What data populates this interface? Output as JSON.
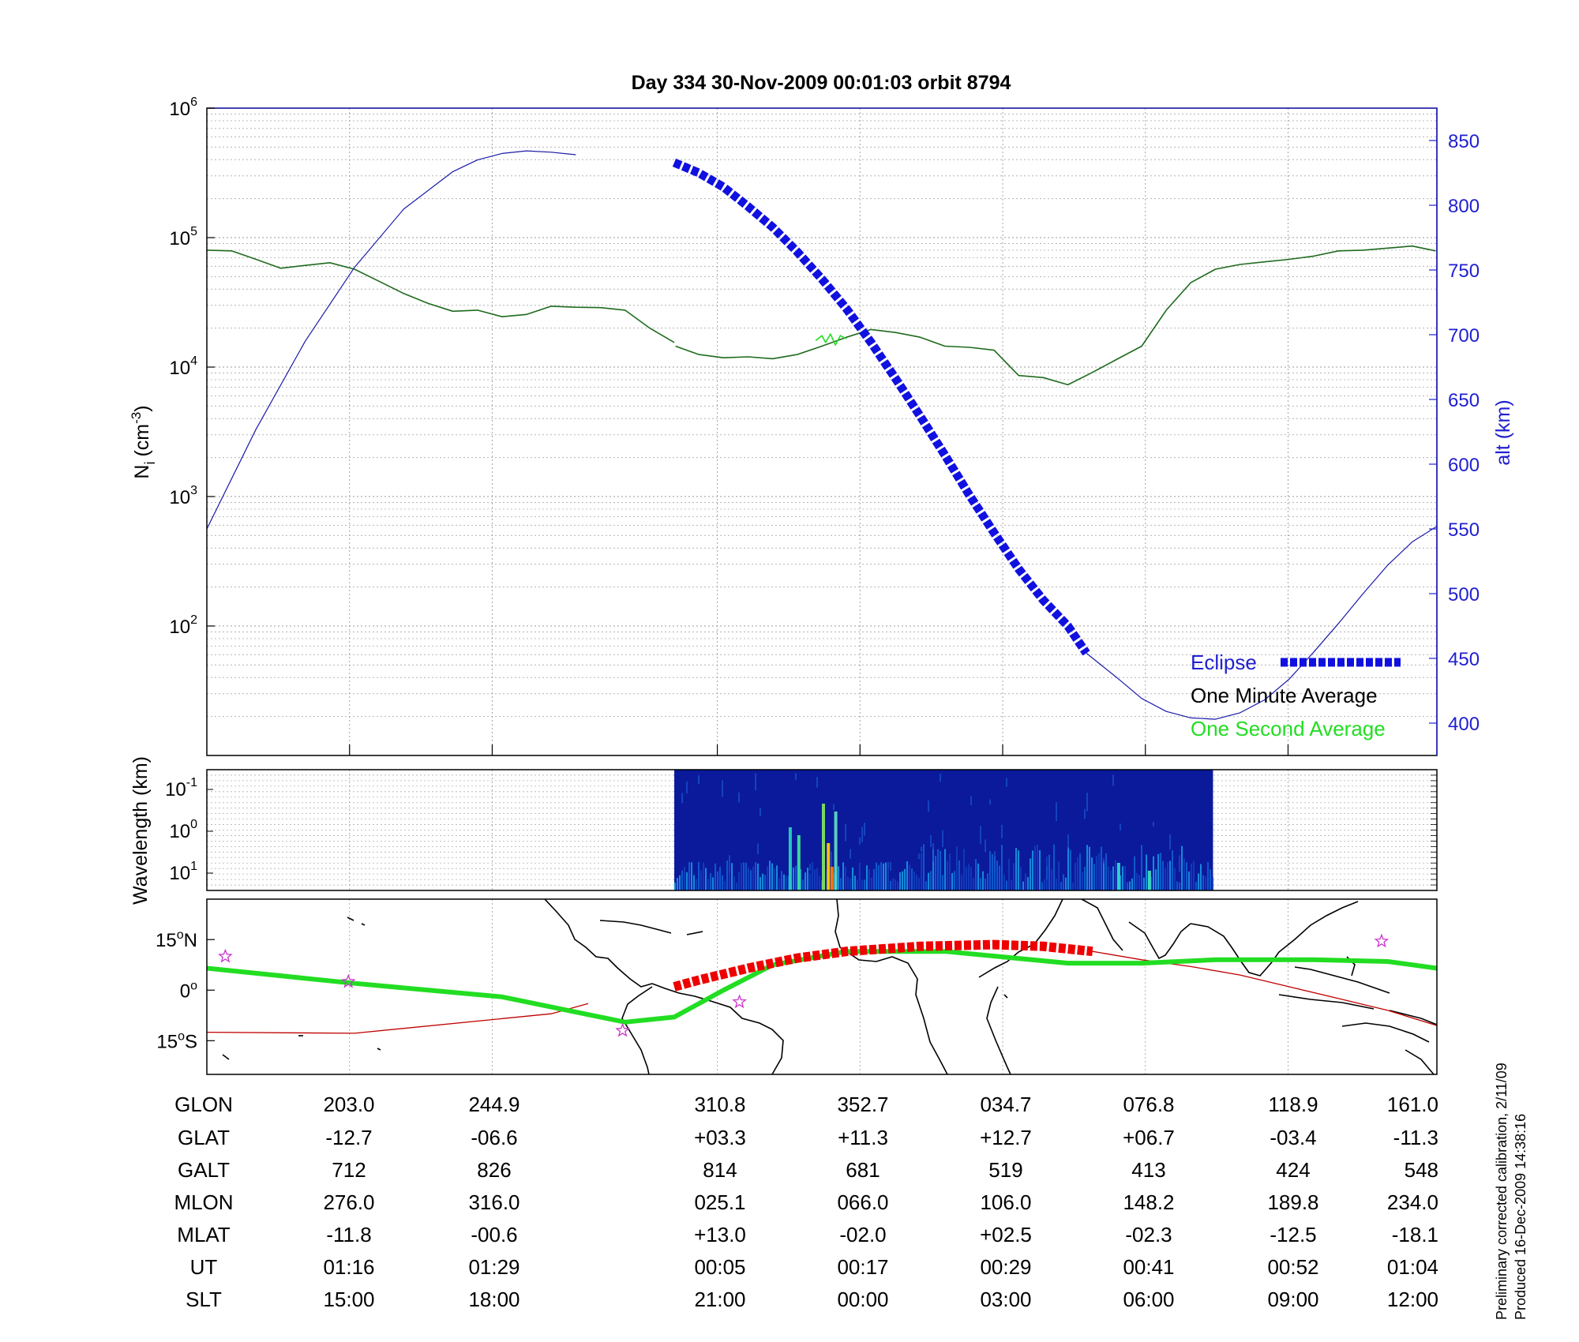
{
  "title": "Day 334  30-Nov-2009 00:01:03   orbit 8794",
  "colors": {
    "axis_blue": "#2020d0",
    "eclipse_blue": "#1010e0",
    "minute_avg": "#1e6a1e",
    "second_avg": "#22dd22",
    "orbit_track": "#c00000",
    "eclipse_red": "#ee0000",
    "star": "#cc33cc"
  },
  "chart_data": [
    {
      "type": "line",
      "panel": "density",
      "ylabel_main": "N",
      "ylabel_sub": "i",
      "ylabel_unit": "(cm",
      "ylabel_exp": "-3",
      "ylabel_close": ")",
      "yscale": "log",
      "ylim": [
        10,
        1000000
      ],
      "yticks": [
        {
          "base": "10",
          "exp": "6",
          "value": 1000000
        },
        {
          "base": "10",
          "exp": "5",
          "value": 100000
        },
        {
          "base": "10",
          "exp": "4",
          "value": 10000
        },
        {
          "base": "10",
          "exp": "3",
          "value": 1000
        },
        {
          "base": "10",
          "exp": "2",
          "value": 100
        }
      ],
      "y2label": "alt (km)",
      "y2lim": [
        375,
        875
      ],
      "y2ticks": [
        "850",
        "800",
        "750",
        "700",
        "650",
        "600",
        "550",
        "500",
        "450",
        "400"
      ],
      "grid": true,
      "legend_position": "bottom-right",
      "legend": [
        {
          "label": "Eclipse",
          "color": "#1010e0"
        },
        {
          "label": "One Minute Average",
          "color": "#000000"
        },
        {
          "label": "One Second Average",
          "color": "#22dd22"
        }
      ],
      "x_ut_minutes_min": 72,
      "x_ut_minutes_max": 64,
      "series": [
        {
          "name": "One Minute Average",
          "axis": "left",
          "segments": [
            [
              [
                0,
                80000
              ],
              [
                2,
                79000
              ],
              [
                4,
                68000
              ],
              [
                6,
                58000
              ],
              [
                8,
                61000
              ],
              [
                10,
                64000
              ],
              [
                12,
                57000
              ],
              [
                14,
                46000
              ],
              [
                16,
                37000
              ],
              [
                18,
                31000
              ],
              [
                20,
                27000
              ],
              [
                22,
                27500
              ],
              [
                24,
                24500
              ],
              [
                26,
                25500
              ],
              [
                28,
                29500
              ],
              [
                30,
                29000
              ],
              [
                32,
                28800
              ],
              [
                34,
                27500
              ],
              [
                36,
                20000
              ],
              [
                38,
                15500
              ]
            ],
            [
              [
                38.1,
                14500
              ],
              [
                40,
                12500
              ],
              [
                42,
                11800
              ],
              [
                44,
                12000
              ],
              [
                46,
                11600
              ],
              [
                48,
                12500
              ],
              [
                50,
                14500
              ],
              [
                52,
                17000
              ],
              [
                54,
                19500
              ],
              [
                56,
                18500
              ],
              [
                58,
                17000
              ],
              [
                60,
                14500
              ],
              [
                62,
                14200
              ],
              [
                64,
                13500
              ],
              [
                66,
                8600
              ],
              [
                68,
                8300
              ],
              [
                70,
                7300
              ],
              [
                72,
                9100
              ],
              [
                74,
                11500
              ],
              [
                76,
                14500
              ],
              [
                78,
                27500
              ],
              [
                80,
                45000
              ],
              [
                82,
                57000
              ],
              [
                84,
                62000
              ],
              [
                86,
                65000
              ],
              [
                88,
                68000
              ],
              [
                90,
                72000
              ],
              [
                92,
                79000
              ],
              [
                94,
                80000
              ],
              [
                96,
                83000
              ],
              [
                98,
                86000
              ],
              [
                99.9,
                79000
              ]
            ]
          ]
        },
        {
          "name": "One Second Average",
          "axis": "left",
          "segments": [
            [
              [
                49.5,
                16000
              ],
              [
                50.0,
                17500
              ],
              [
                50.3,
                15500
              ],
              [
                50.7,
                18000
              ],
              [
                51.1,
                14800
              ],
              [
                51.5,
                17500
              ],
              [
                52.0,
                16500
              ]
            ]
          ]
        },
        {
          "name": "alt (km)",
          "axis": "right",
          "segments": [
            [
              [
                0,
                550
              ],
              [
                4,
                627
              ],
              [
                8,
                695
              ],
              [
                12,
                752
              ],
              [
                16,
                797
              ],
              [
                20,
                826
              ],
              [
                22,
                835
              ],
              [
                24,
                840
              ],
              [
                26,
                842
              ],
              [
                28,
                841
              ],
              [
                30,
                839
              ]
            ]
          ]
        },
        {
          "name": "Eclipse",
          "axis": "right",
          "segments": [
            [
              [
                38,
                833
              ],
              [
                40,
                825
              ],
              [
                42,
                814
              ],
              [
                44,
                799
              ],
              [
                46,
                783
              ],
              [
                48,
                764
              ],
              [
                50,
                743
              ],
              [
                52,
                720
              ],
              [
                54,
                694
              ],
              [
                56,
                666
              ],
              [
                58,
                637
              ],
              [
                60,
                607
              ],
              [
                62,
                576
              ],
              [
                64,
                547
              ],
              [
                66,
                519
              ],
              [
                68,
                495
              ],
              [
                70,
                475
              ],
              [
                71.5,
                454
              ]
            ]
          ]
        },
        {
          "name": "alt (km)",
          "axis": "right",
          "segments": [
            [
              [
                71.5,
                454
              ],
              [
                74,
                435
              ],
              [
                76,
                419
              ],
              [
                78,
                409
              ],
              [
                80,
                404
              ],
              [
                82,
                403
              ],
              [
                84,
                408
              ],
              [
                86,
                418
              ],
              [
                88,
                434
              ],
              [
                90,
                455
              ],
              [
                92,
                477
              ],
              [
                94,
                500
              ],
              [
                96,
                522
              ],
              [
                98,
                540
              ],
              [
                100,
                552
              ]
            ]
          ]
        }
      ]
    },
    {
      "type": "heatmap",
      "panel": "spectrogram",
      "ylabel": "Wavelength (km)",
      "yscale": "log",
      "yticks": [
        {
          "base": "10",
          "exp": "-1"
        },
        {
          "base": "10",
          "exp": "0"
        },
        {
          "base": "10",
          "exp": "1"
        }
      ],
      "data_range_percent": [
        38,
        81.8
      ]
    },
    {
      "type": "map",
      "panel": "ground track",
      "yticks": [
        {
          "text": "15",
          "suffix": "N",
          "value": 15
        },
        {
          "text": "0",
          "suffix": "",
          "value": 0
        },
        {
          "text": "15",
          "suffix": "S",
          "value": -15
        }
      ],
      "ylim": [
        -25,
        27
      ],
      "track_sat": [
        [
          0,
          -12.5
        ],
        [
          12,
          -12.8
        ],
        [
          28,
          -7.0
        ],
        [
          31,
          -4.0
        ]
      ],
      "track_sat_eclipse": [
        [
          38,
          1.0
        ],
        [
          40,
          3.0
        ],
        [
          44,
          6.5
        ],
        [
          48,
          9.5
        ],
        [
          52,
          11.5
        ],
        [
          58,
          13.0
        ],
        [
          64,
          13.5
        ],
        [
          68,
          13.0
        ],
        [
          72,
          11.5
        ]
      ],
      "track_sat_after": [
        [
          72,
          11.5
        ],
        [
          76,
          9.0
        ],
        [
          80,
          7.0
        ],
        [
          84,
          4.5
        ],
        [
          88,
          1.0
        ],
        [
          92,
          -2.5
        ],
        [
          96,
          -6.0
        ],
        [
          100,
          -10.5
        ]
      ],
      "track_mag": [
        [
          0,
          6.5
        ],
        [
          12,
          2.0
        ],
        [
          24,
          -2.0
        ],
        [
          34,
          -9.5
        ],
        [
          38,
          -8.0
        ],
        [
          42,
          0
        ],
        [
          46,
          7.5
        ],
        [
          52,
          11.5
        ],
        [
          60,
          11.5
        ],
        [
          70,
          8.0
        ],
        [
          76,
          8.0
        ],
        [
          82,
          9.0
        ],
        [
          90,
          9.0
        ],
        [
          96,
          8.5
        ],
        [
          100,
          6.5
        ]
      ],
      "stars": [
        [
          1.5,
          10.0
        ],
        [
          11.5,
          2.5
        ],
        [
          33.8,
          -12.0
        ],
        [
          43.3,
          -3.5
        ],
        [
          95.5,
          14.5
        ]
      ]
    }
  ],
  "ephemeris": {
    "labels": [
      "GLON",
      "GLAT",
      "GALT",
      "MLON",
      "MLAT",
      "UT",
      "SLT"
    ],
    "columns": [
      [
        "203.0",
        "-12.7",
        "712",
        "276.0",
        "-11.8",
        "01:16",
        "15:00"
      ],
      [
        "244.9",
        "-06.6",
        "826",
        "316.0",
        "-00.6",
        "01:29",
        "18:00"
      ],
      [
        "310.8",
        "+03.3",
        "814",
        "025.1",
        "+13.0",
        "00:05",
        "21:00"
      ],
      [
        "352.7",
        "+11.3",
        "681",
        "066.0",
        "-02.0",
        "00:17",
        "00:00"
      ],
      [
        "034.7",
        "+12.7",
        "519",
        "106.0",
        "+02.5",
        "00:29",
        "03:00"
      ],
      [
        "076.8",
        "+06.7",
        "413",
        "148.2",
        "-02.3",
        "00:41",
        "06:00"
      ],
      [
        "118.9",
        "-03.4",
        "424",
        "189.8",
        "-12.5",
        "00:52",
        "09:00"
      ],
      [
        "161.0",
        "-11.3",
        "548",
        "234.0",
        "-18.1",
        "01:04",
        "12:00"
      ]
    ]
  },
  "notes": {
    "calibration": "Preliminary corrected calibration, 2/11/09",
    "produced": "Produced 16-Dec-2009 14:38:16"
  }
}
